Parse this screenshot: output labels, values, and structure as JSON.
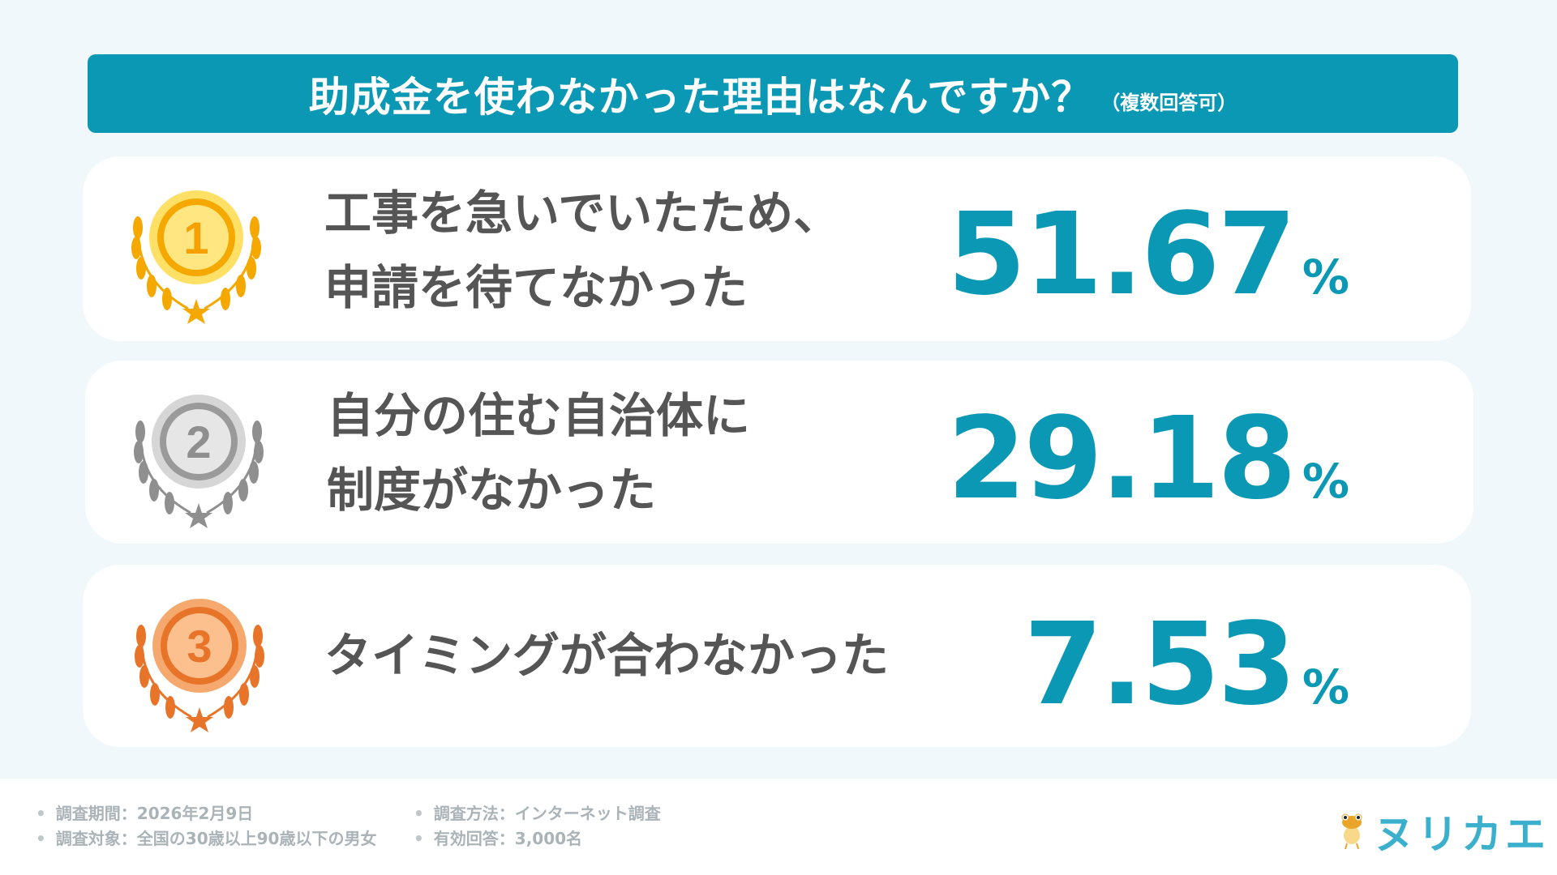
{
  "header": {
    "title": "助成金を使わなかった理由はなんですか？",
    "subtitle": "（複数回答可）"
  },
  "rankings": [
    {
      "rank": "1",
      "line1": "工事を急いでいたため、",
      "line2": "申請を待てなかった",
      "value": "51.67",
      "unit": "%",
      "medal": "gold"
    },
    {
      "rank": "2",
      "line1": "自分の住む自治体に",
      "line2": "制度がなかった",
      "value": "29.18",
      "unit": "%",
      "medal": "silver"
    },
    {
      "rank": "3",
      "line1": "タイミングが合わなかった",
      "line2": "",
      "value": "7.53",
      "unit": "%",
      "medal": "bronze"
    }
  ],
  "footer": {
    "period": "調査期間：2026年2月9日",
    "target": "調査対象：全国の30歳以上90歳以下の男女",
    "method": "調査方法：インターネット調査",
    "responses": "有効回答：3,000名"
  },
  "logo": {
    "text": "ヌリカエ"
  },
  "colors": {
    "accent": "#0a98b4",
    "gold": "#f5a800",
    "silver": "#8f8f8f",
    "bronze": "#e8742a",
    "text": "#555555"
  }
}
